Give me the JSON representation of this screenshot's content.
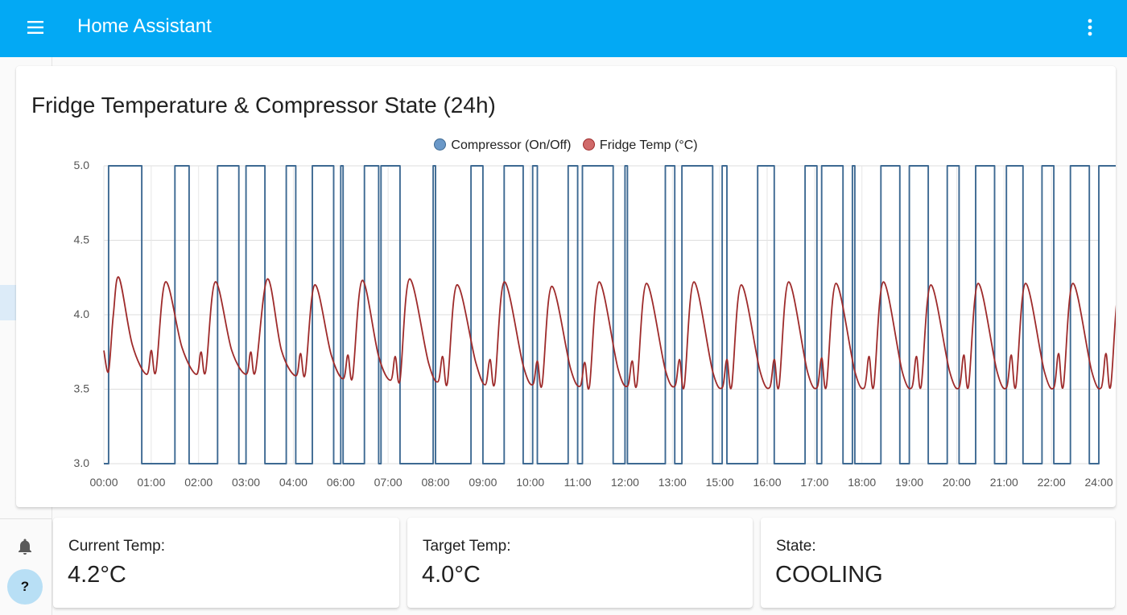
{
  "app": {
    "title": "Home Assistant"
  },
  "icons": {
    "menu": "hamburger-menu-icon",
    "more": "dots-vertical-icon",
    "sidebar": [
      "dashboard-icon",
      "bar-chart-icon",
      "bar-chart-icon",
      "checklist-icon",
      "wrench-icon",
      "notebook-icon",
      "gear-icon",
      "bar-chart-icon",
      "hammer-icon",
      "bell-icon"
    ]
  },
  "sidebar": {
    "active_item": "wrench",
    "help_label": "?"
  },
  "colors": {
    "header": "#03a9f4",
    "compressor": "#3d6992",
    "fridge_temp": "#9e2b2b"
  },
  "chart_card": {
    "title": "Fridge Temperature & Compressor State (24h)",
    "legend": [
      {
        "name": "Compressor (On/Off)",
        "color": "#3d6992"
      },
      {
        "name": "Fridge Temp (°C)",
        "color": "#9e2b2b"
      }
    ]
  },
  "chart_data": {
    "type": "line",
    "title": "Fridge Temperature & Compressor State (24h)",
    "xlabel": "",
    "ylabel": "",
    "ylim": [
      3.0,
      5.0
    ],
    "y_ticks": [
      "3.0",
      "3.5",
      "4.0",
      "4.5",
      "5.0"
    ],
    "x_ticks": [
      "00:00",
      "01:00",
      "02:00",
      "03:00",
      "04:00",
      "06:00",
      "07:00",
      "08:00",
      "09:00",
      "10:00",
      "11:00",
      "12:00",
      "13:00",
      "15:00",
      "16:00",
      "17:00",
      "18:00",
      "19:00",
      "20:00",
      "21:00",
      "22:00",
      "24:00"
    ],
    "grid": true,
    "legend_position": "top-center",
    "series": [
      {
        "name": "Compressor (On/Off)",
        "color": "#3d6992",
        "step": true,
        "x": [
          0.0,
          0.1,
          0.6,
          0.8,
          1.5,
          1.8,
          2.4,
          2.85,
          3.0,
          3.4,
          3.85,
          4.05,
          4.4,
          4.85,
          5.0,
          5.05,
          5.5,
          5.8,
          5.85,
          6.25,
          6.95,
          7.0,
          7.75,
          8.0,
          8.45,
          8.85,
          9.05,
          9.15,
          9.8,
          10.0,
          10.1,
          10.75,
          11.0,
          11.05,
          11.85,
          12.05,
          12.2,
          12.85,
          13.05,
          13.15,
          13.8,
          14.15,
          14.8,
          15.05,
          15.15,
          15.6,
          15.8,
          15.85,
          16.4,
          16.8,
          17.0,
          17.4,
          17.8,
          18.05,
          18.4,
          18.8,
          19.05,
          19.4,
          19.8,
          20.05,
          20.4,
          20.8,
          21.0,
          21.4,
          21.8,
          22.05,
          22.4,
          22.8,
          23.05,
          23.4,
          23.8,
          24.05,
          24.4
        ],
        "y": [
          3.0,
          5.0,
          5.0,
          3.0,
          5.0,
          3.0,
          5.0,
          3.0,
          5.0,
          3.0,
          5.0,
          3.0,
          5.0,
          3.0,
          5.0,
          3.0,
          5.0,
          3.0,
          5.0,
          3.0,
          5.0,
          3.0,
          5.0,
          3.0,
          5.0,
          3.0,
          5.0,
          3.0,
          5.0,
          3.0,
          5.0,
          3.0,
          5.0,
          3.0,
          5.0,
          3.0,
          5.0,
          3.0,
          5.0,
          3.0,
          5.0,
          3.0,
          5.0,
          3.0,
          5.0,
          3.0,
          5.0,
          3.0,
          5.0,
          3.0,
          5.0,
          3.0,
          5.0,
          3.0,
          5.0,
          3.0,
          5.0,
          3.0,
          5.0,
          3.0,
          5.0,
          3.0,
          5.0,
          3.0,
          5.0,
          3.0,
          5.0,
          3.0,
          5.0,
          3.0,
          5.0,
          3.0,
          5.0
        ]
      },
      {
        "name": "Fridge Temp (°C)",
        "color": "#9e2b2b",
        "x": [
          0.0,
          0.1,
          0.2,
          0.32,
          0.6,
          0.9,
          1.0,
          1.1,
          1.3,
          1.65,
          1.95,
          2.05,
          2.15,
          2.35,
          2.7,
          3.0,
          3.1,
          3.2,
          3.45,
          3.75,
          4.05,
          4.15,
          4.25,
          4.45,
          4.8,
          5.05,
          5.15,
          5.25,
          5.45,
          5.8,
          6.05,
          6.15,
          6.25,
          6.45,
          6.85,
          7.05,
          7.15,
          7.25,
          7.45,
          7.85,
          8.05,
          8.15,
          8.25,
          8.45,
          8.85,
          9.05,
          9.15,
          9.25,
          9.45,
          9.85,
          10.05,
          10.15,
          10.25,
          10.45,
          10.85,
          11.05,
          11.15,
          11.25,
          11.45,
          11.85,
          12.05,
          12.15,
          12.25,
          12.45,
          12.85,
          13.05,
          13.15,
          13.25,
          13.45,
          13.85,
          14.05,
          14.15,
          14.25,
          14.45,
          14.85,
          15.05,
          15.15,
          15.25,
          15.45,
          15.85,
          16.05,
          16.15,
          16.25,
          16.45,
          16.85,
          17.05,
          17.15,
          17.25,
          17.45,
          17.85,
          18.05,
          18.15,
          18.25,
          18.45,
          18.85,
          19.05,
          19.15,
          19.25,
          19.45,
          19.85,
          20.05,
          20.15,
          20.25,
          20.45,
          20.85,
          21.05,
          21.15,
          21.25,
          21.45,
          21.85,
          22.05,
          22.15,
          22.25,
          22.45,
          22.85,
          23.05,
          23.15,
          23.25,
          23.45,
          23.85,
          24.05,
          24.2,
          24.4
        ],
        "y": [
          3.76,
          3.62,
          4.0,
          4.25,
          3.8,
          3.6,
          3.76,
          3.62,
          4.22,
          3.78,
          3.6,
          3.75,
          3.62,
          4.22,
          3.76,
          3.6,
          3.75,
          3.62,
          4.24,
          3.76,
          3.59,
          3.74,
          3.6,
          4.2,
          3.73,
          3.57,
          3.73,
          3.58,
          4.23,
          3.72,
          3.56,
          3.72,
          3.56,
          4.24,
          3.68,
          3.55,
          3.72,
          3.54,
          4.2,
          3.68,
          3.53,
          3.7,
          3.54,
          4.22,
          3.66,
          3.53,
          3.69,
          3.53,
          4.19,
          3.64,
          3.52,
          3.68,
          3.52,
          4.22,
          3.64,
          3.52,
          3.69,
          3.53,
          4.21,
          3.63,
          3.52,
          3.7,
          3.52,
          4.22,
          3.62,
          3.51,
          3.7,
          3.52,
          4.2,
          3.62,
          3.51,
          3.7,
          3.52,
          4.22,
          3.62,
          3.51,
          3.71,
          3.52,
          4.21,
          3.62,
          3.51,
          3.72,
          3.52,
          4.22,
          3.62,
          3.51,
          3.72,
          3.52,
          4.2,
          3.62,
          3.51,
          3.73,
          3.52,
          4.21,
          3.62,
          3.51,
          3.73,
          3.52,
          4.21,
          3.62,
          3.51,
          3.74,
          3.52,
          4.21,
          3.62,
          3.51,
          3.74,
          3.52,
          4.21,
          3.62,
          3.51,
          3.74,
          3.52,
          4.21,
          3.62,
          3.52,
          3.74,
          3.54,
          4.22,
          3.62,
          4.2,
          3.95,
          3.84
        ]
      }
    ]
  },
  "cards": [
    {
      "label": "Current Temp:",
      "value": "4.2°C"
    },
    {
      "label": "Target Temp:",
      "value": "4.0°C"
    },
    {
      "label": "State:",
      "value": "COOLING"
    }
  ]
}
